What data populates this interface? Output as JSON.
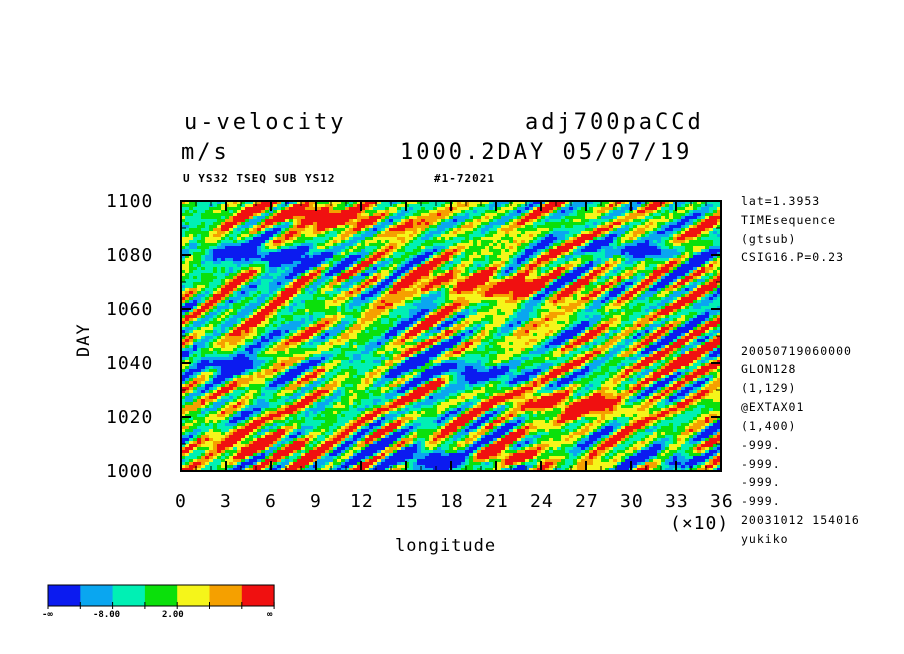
{
  "titles": {
    "variable": "u-velocity",
    "run": "adj700paCCd",
    "units": "m/s",
    "time": "1000.2DAY 05/07/19",
    "subtitle": "U YS32 TSEQ SUB YS12",
    "id": "#1-72021"
  },
  "side_info": {
    "top": [
      "lat=1.3953",
      "TIMEsequence",
      "(gtsub)",
      "CSIG16.P=0.23"
    ],
    "bottom": [
      "20050719060000",
      "GLON128",
      "(1,129)",
      "@EXTAX01",
      "(1,400)",
      "-999.",
      "-999.",
      "-999.",
      "-999.",
      "20031012 154016",
      "yukiko"
    ]
  },
  "axes": {
    "xlabel": "longitude",
    "ylabel": "DAY",
    "x_multiplier": "(×10)",
    "x_ticks": [
      "0",
      "3",
      "6",
      "9",
      "12",
      "15",
      "18",
      "21",
      "24",
      "27",
      "30",
      "33",
      "36"
    ],
    "y_ticks": [
      "1000",
      "1020",
      "1040",
      "1060",
      "1080",
      "1100"
    ]
  },
  "colorbar": {
    "colors": [
      "#0b1bf0",
      "#0aa6f0",
      "#00f0b4",
      "#0be00b",
      "#f5f51a",
      "#f5a000",
      "#f01010"
    ],
    "labels": [
      "-∞",
      "-8.00",
      "2.00",
      "∞"
    ]
  },
  "chart_data": {
    "type": "heatmap",
    "title": "u-velocity",
    "xlabel": "longitude",
    "ylabel": "DAY",
    "xlim": [
      0,
      360
    ],
    "ylim": [
      1000,
      1100
    ],
    "color_levels": [
      "-∞",
      "-8.00",
      "2.00",
      "∞"
    ],
    "pattern": "Hovmöller diagram of eastward-tilted streaks; red maxima concentrated near days 1005-1015 (lon 60-120), 1045-1055 (lon 200-300), 1070-1075 (lon 230-330), 1095-1100 (lon 50-130); blue minima near days 1000-1010 (lon 150-250), 1080-1090 (lon 30-140), 1025-1035 (lon 150-250)"
  }
}
